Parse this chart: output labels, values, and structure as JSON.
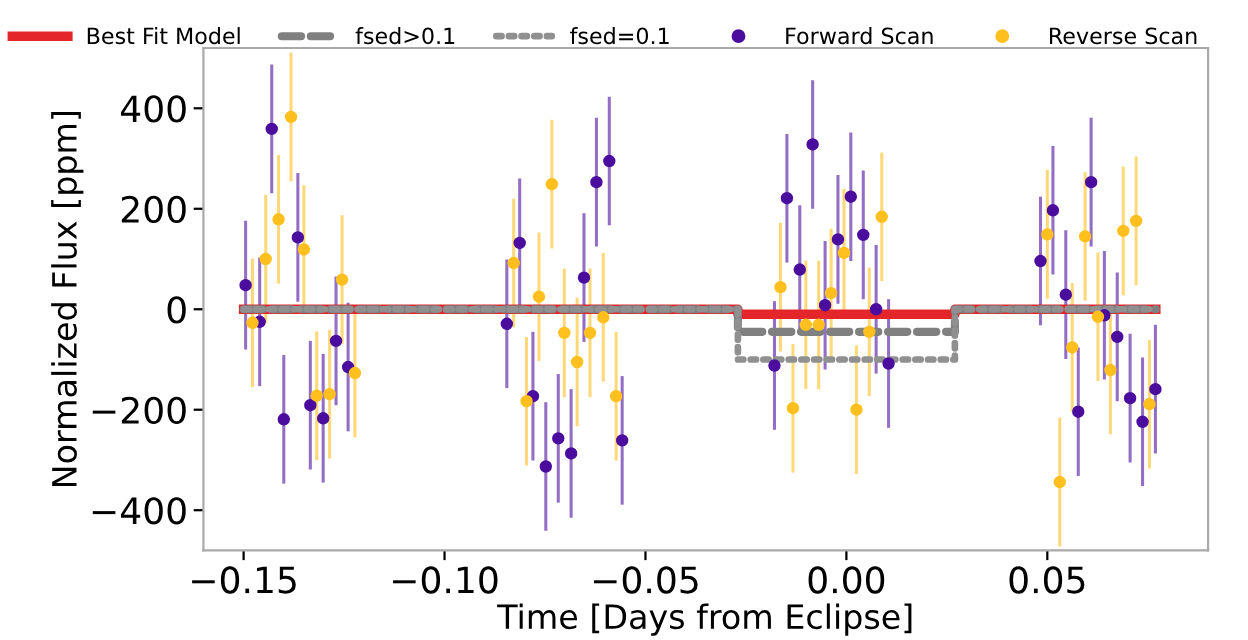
{
  "chart_data": {
    "type": "scatter",
    "xlabel": "Time [Days from Eclipse]",
    "ylabel": "Normalized Flux [ppm]",
    "xlim": [
      -0.16,
      0.09
    ],
    "ylim": [
      -480,
      520
    ],
    "xticks": [
      {
        "value": -0.15,
        "label": "−0.15"
      },
      {
        "value": -0.1,
        "label": "−0.10"
      },
      {
        "value": -0.05,
        "label": "−0.05"
      },
      {
        "value": 0,
        "label": "0.00"
      },
      {
        "value": 0.05,
        "label": "0.05"
      }
    ],
    "yticks": [
      {
        "value": -400,
        "label": "−400"
      },
      {
        "value": -200,
        "label": "−200"
      },
      0,
      200,
      400
    ],
    "grid": false,
    "legend": "top",
    "series": [
      {
        "name": "Best Fit Model",
        "type": "line",
        "color": "#e4262a",
        "line_style": "solid",
        "x": [
          -0.15,
          -0.027,
          -0.027,
          0.027,
          0.027,
          0.077
        ],
        "values": [
          0,
          0,
          -10,
          -10,
          0,
          0
        ]
      },
      {
        "name": "fsed>0.1",
        "type": "line",
        "color": "#808080",
        "line_style": "dashed",
        "x": [
          -0.15,
          -0.027,
          -0.027,
          0.027,
          0.027,
          0.077
        ],
        "values": [
          0,
          0,
          -45,
          -45,
          0,
          0
        ]
      },
      {
        "name": "fsed=0.1",
        "type": "line",
        "color": "#909090",
        "line_style": "dotted",
        "x": [
          -0.15,
          -0.027,
          -0.027,
          0.027,
          0.027,
          0.077
        ],
        "values": [
          0,
          0,
          -100,
          -100,
          0,
          0
        ]
      },
      {
        "name": "Forward Scan",
        "marker": "circle",
        "color": "#4b0d9e",
        "x": [
          -0.1495,
          -0.146,
          -0.143,
          -0.14,
          -0.1365,
          -0.1334,
          -0.1302,
          -0.127,
          -0.124,
          -0.0845,
          -0.0813,
          -0.078,
          -0.0748,
          -0.0717,
          -0.0685,
          -0.0653,
          -0.0622,
          -0.059,
          -0.0558,
          -0.0179,
          -0.0148,
          -0.0116,
          -0.0084,
          -0.0053,
          -0.0021,
          0.0011,
          0.0042,
          0.0074,
          0.0105,
          0.0483,
          0.0514,
          0.0546,
          0.0577,
          0.0609,
          0.0642,
          0.0674,
          0.0706,
          0.0737,
          0.0769
        ],
        "values": [
          48,
          -25,
          359,
          -219,
          143,
          -191,
          -217,
          -63,
          -115,
          -29,
          132,
          -173,
          -313,
          -257,
          -287,
          63,
          253,
          295,
          -261,
          -112,
          221,
          79,
          328,
          8,
          139,
          224,
          148,
          0,
          -108,
          96,
          197,
          29,
          -204,
          253,
          -12,
          -55,
          -177,
          -224,
          -159
        ],
        "errors": [
          128,
          128,
          128,
          128,
          128,
          128,
          128,
          128,
          128,
          128,
          128,
          128,
          128,
          128,
          128,
          128,
          128,
          128,
          128,
          128,
          128,
          128,
          128,
          128,
          128,
          128,
          128,
          128,
          128,
          128,
          128,
          128,
          128,
          128,
          128,
          128,
          128,
          128,
          128
        ]
      },
      {
        "name": "Reverse Scan",
        "marker": "circle",
        "color": "#ffc01f",
        "x": [
          -0.1478,
          -0.1445,
          -0.1413,
          -0.1382,
          -0.135,
          -0.1318,
          -0.1286,
          -0.1255,
          -0.1223,
          -0.0828,
          -0.0796,
          -0.0765,
          -0.0733,
          -0.0702,
          -0.067,
          -0.0638,
          -0.0605,
          -0.0573,
          -0.0164,
          -0.0133,
          -0.0101,
          -0.0069,
          -0.0038,
          -0.0006,
          0.0025,
          0.0057,
          0.0088,
          0.05,
          0.0531,
          0.0562,
          0.0594,
          0.0626,
          0.0657,
          0.0689,
          0.0721,
          0.0754
        ],
        "values": [
          -27,
          100,
          179,
          383,
          119,
          -172,
          -169,
          59,
          -127,
          92,
          -183,
          25,
          249,
          -47,
          -105,
          -47,
          -16,
          -173,
          44,
          -197,
          -31,
          -31,
          32,
          112,
          -200,
          -45,
          184,
          149,
          -344,
          -76,
          145,
          -15,
          -121,
          156,
          176,
          -189
        ],
        "errors": [
          128,
          128,
          128,
          128,
          128,
          128,
          128,
          128,
          128,
          128,
          128,
          128,
          128,
          128,
          128,
          128,
          128,
          128,
          128,
          128,
          128,
          128,
          128,
          128,
          128,
          128,
          128,
          128,
          128,
          128,
          128,
          128,
          128,
          128,
          128,
          128
        ]
      }
    ]
  }
}
